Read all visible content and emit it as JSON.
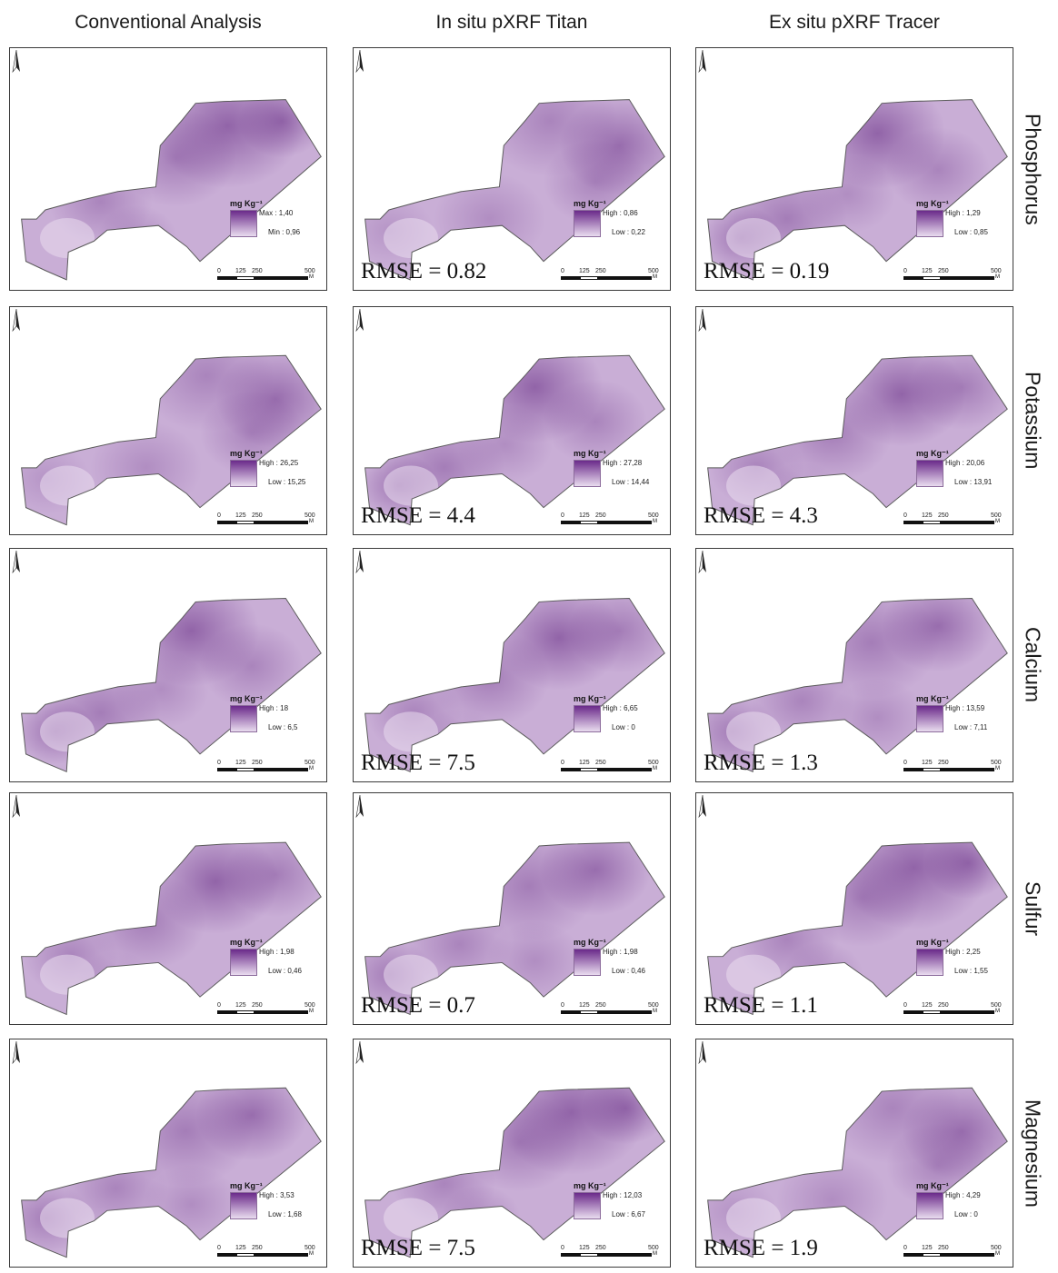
{
  "columns": [
    {
      "title": "Conventional Analysis"
    },
    {
      "title": "In situ pXRF Titan"
    },
    {
      "title": "Ex situ pXRF Tracer"
    }
  ],
  "rows": [
    {
      "label": "Phosphorus"
    },
    {
      "label": "Potassium"
    },
    {
      "label": "Calcium"
    },
    {
      "label": "Sulfur"
    },
    {
      "label": "Magnesium"
    }
  ],
  "legend_unit": "mg Kg⁻¹",
  "scale": {
    "ticks": [
      "0",
      "125",
      "250",
      "500"
    ],
    "unit": "M"
  },
  "colors": {
    "low": "#e9dcef",
    "high": "#5a1a7a",
    "outline": "#5a5a5a"
  },
  "panels": [
    [
      {
        "hi": "Max : 1,40",
        "lo": "Min : 0,96",
        "rmse": ""
      },
      {
        "hi": "High : 0,86",
        "lo": "Low : 0,22",
        "rmse": "RMSE = 0.82"
      },
      {
        "hi": "High : 1,29",
        "lo": "Low : 0,85",
        "rmse": "RMSE = 0.19"
      }
    ],
    [
      {
        "hi": "High : 26,25",
        "lo": "Low : 15,25",
        "rmse": ""
      },
      {
        "hi": "High : 27,28",
        "lo": "Low : 14,44",
        "rmse": "RMSE = 4.4"
      },
      {
        "hi": "High : 20,06",
        "lo": "Low : 13,91",
        "rmse": "RMSE = 4.3"
      }
    ],
    [
      {
        "hi": "High : 18",
        "lo": "Low : 6,5",
        "rmse": ""
      },
      {
        "hi": "High : 6,65",
        "lo": "Low : 0",
        "rmse": "RMSE = 7.5"
      },
      {
        "hi": "High : 13,59",
        "lo": "Low : 7,11",
        "rmse": "RMSE = 1.3"
      }
    ],
    [
      {
        "hi": "High : 1,98",
        "lo": "Low : 0,46",
        "rmse": ""
      },
      {
        "hi": "High : 1,98",
        "lo": "Low : 0,46",
        "rmse": "RMSE = 0.7"
      },
      {
        "hi": "High : 2,25",
        "lo": "Low : 1,55",
        "rmse": "RMSE = 1.1"
      }
    ],
    [
      {
        "hi": "High : 3,53",
        "lo": "Low : 1,68",
        "rmse": ""
      },
      {
        "hi": "High : 12,03",
        "lo": "Low : 6,67",
        "rmse": "RMSE = 7.5"
      },
      {
        "hi": "High : 4,29",
        "lo": "Low : 0",
        "rmse": "RMSE = 1.9"
      }
    ]
  ]
}
